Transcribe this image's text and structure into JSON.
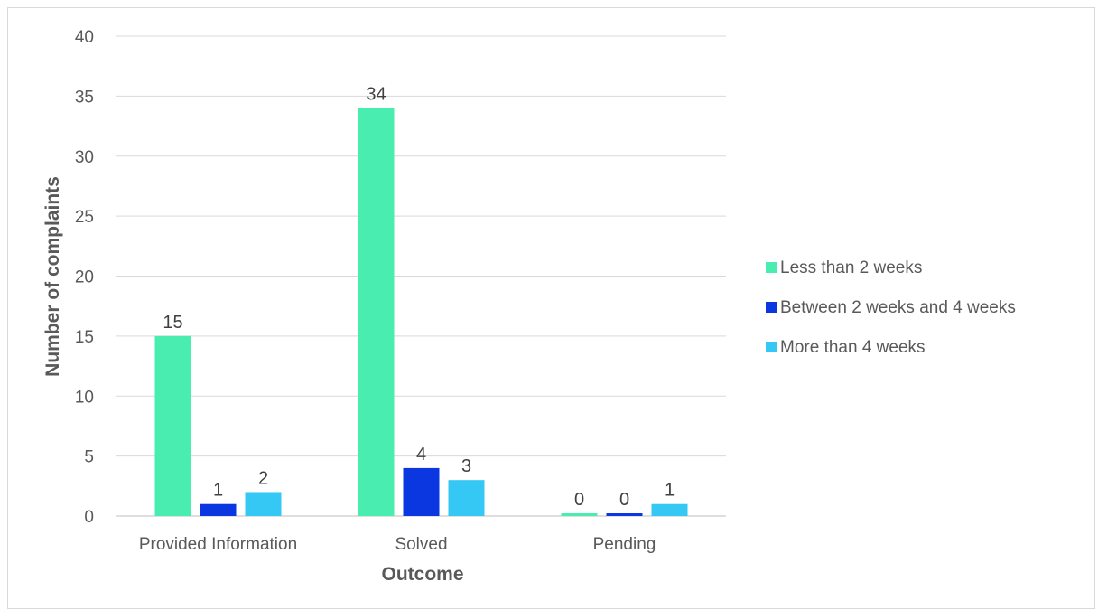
{
  "chart_data": {
    "type": "bar",
    "title": "",
    "xlabel": "Outcome",
    "ylabel": "Number of complaints",
    "categories": [
      "Provided Information",
      "Solved",
      "Pending"
    ],
    "series": [
      {
        "name": "Less than 2 weeks",
        "values": [
          15,
          34,
          0
        ],
        "color": "#4aedb0"
      },
      {
        "name": "Between 2 weeks and 4 weeks",
        "values": [
          1,
          4,
          0
        ],
        "color": "#0a37e0"
      },
      {
        "name": "More than 4 weeks",
        "values": [
          2,
          3,
          1
        ],
        "color": "#36c8f4"
      }
    ],
    "ylim": [
      0,
      40
    ],
    "yticks": [
      0,
      5,
      10,
      15,
      20,
      25,
      30,
      35,
      40
    ],
    "grid": true,
    "legend_position": "right",
    "data_labels": true
  }
}
